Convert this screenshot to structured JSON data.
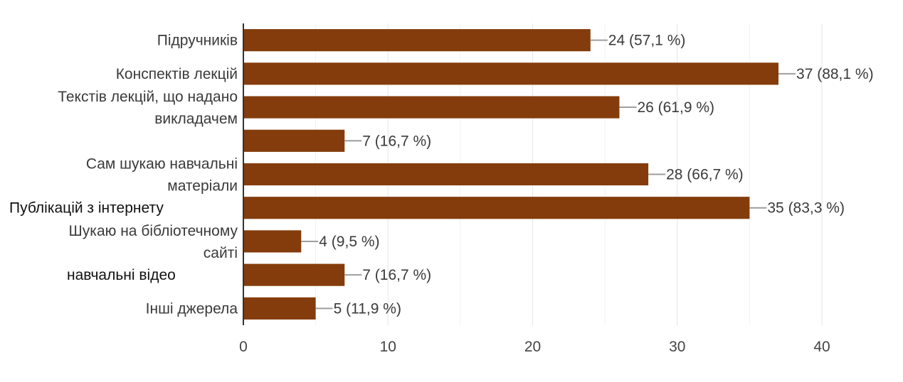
{
  "chart_data": {
    "type": "bar",
    "orientation": "horizontal",
    "categories": [
      [
        "Підручників"
      ],
      [
        "Конспектів лекцій"
      ],
      [
        "Текстів лекцій, що надано",
        "викладачем"
      ],
      [],
      [
        "Сам шукаю навчальні",
        "матеріали"
      ],
      [
        "Публікацій з інтернету"
      ],
      [
        "Шукаю на бібліотечному",
        "сайті"
      ],
      [
        "навчальні відео"
      ],
      [
        "Інші джерела"
      ]
    ],
    "values": [
      24,
      37,
      26,
      7,
      28,
      35,
      4,
      7,
      5
    ],
    "data_labels": [
      "24 (57,1 %)",
      "37 (88,1 %)",
      "26 (61,9 %)",
      "7 (16,7 %)",
      "28 (66,7 %)",
      "35 (83,3 %)",
      "4 (9,5 %)",
      "7 (16,7 %)",
      "5 (11,9 %)"
    ],
    "xlim": [
      0,
      40
    ],
    "xticks": [
      "0",
      "10",
      "20",
      "30",
      "40"
    ],
    "grid": true,
    "bar_color": "#843c0c"
  }
}
